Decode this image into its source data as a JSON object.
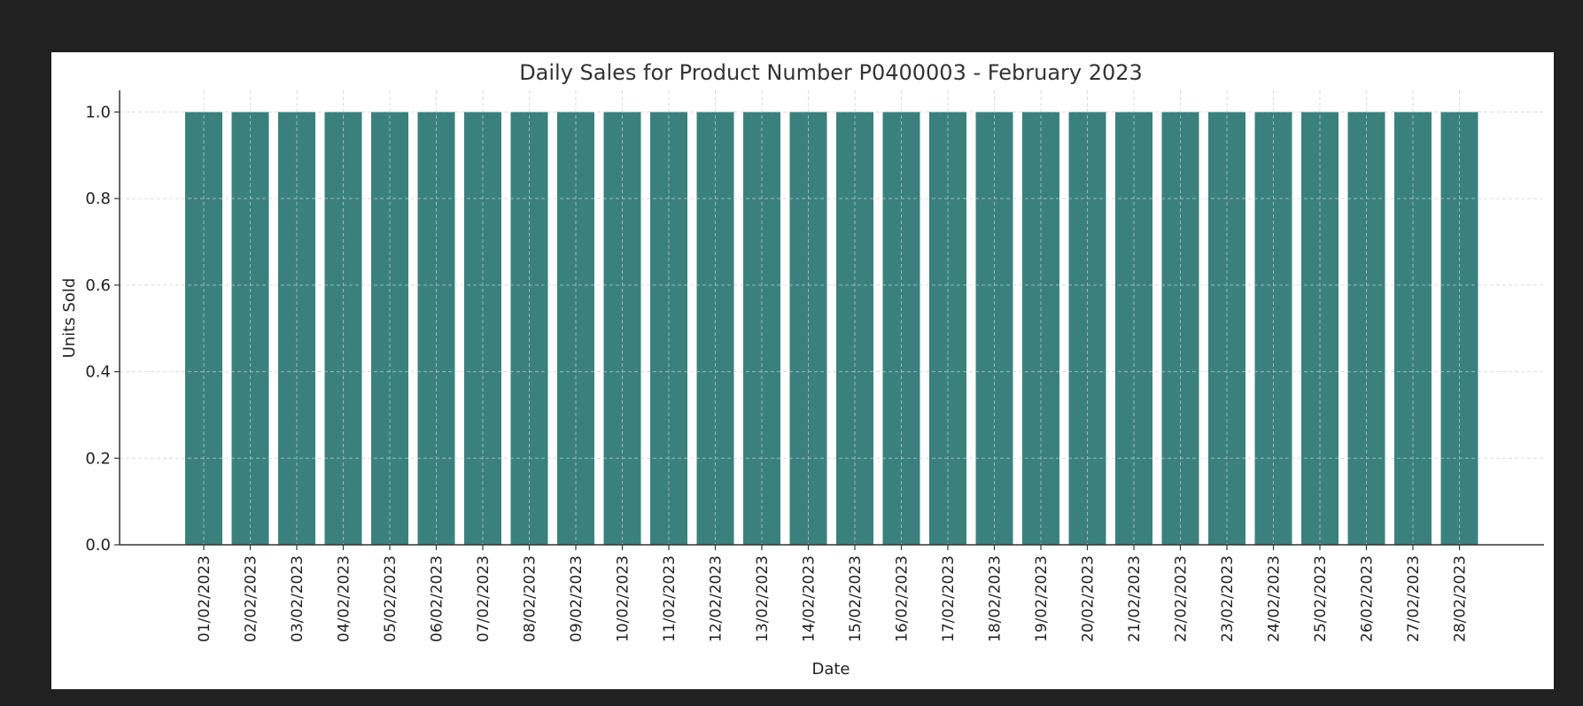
{
  "chart_data": {
    "type": "bar",
    "title": "Daily Sales for Product Number P0400003 - February 2023",
    "xlabel": "Date",
    "ylabel": "Units Sold",
    "categories": [
      "01/02/2023",
      "02/02/2023",
      "03/02/2023",
      "04/02/2023",
      "05/02/2023",
      "06/02/2023",
      "07/02/2023",
      "08/02/2023",
      "09/02/2023",
      "10/02/2023",
      "11/02/2023",
      "12/02/2023",
      "13/02/2023",
      "14/02/2023",
      "15/02/2023",
      "16/02/2023",
      "17/02/2023",
      "18/02/2023",
      "19/02/2023",
      "20/02/2023",
      "21/02/2023",
      "22/02/2023",
      "23/02/2023",
      "24/02/2023",
      "25/02/2023",
      "26/02/2023",
      "27/02/2023",
      "28/02/2023"
    ],
    "values": [
      1,
      1,
      1,
      1,
      1,
      1,
      1,
      1,
      1,
      1,
      1,
      1,
      1,
      1,
      1,
      1,
      1,
      1,
      1,
      1,
      1,
      1,
      1,
      1,
      1,
      1,
      1,
      1
    ],
    "ylim": [
      0,
      1.05
    ],
    "yticks": [
      "0.0",
      "0.2",
      "0.4",
      "0.6",
      "0.8",
      "1.0"
    ],
    "grid": true,
    "bar_color": "#367e7b"
  }
}
